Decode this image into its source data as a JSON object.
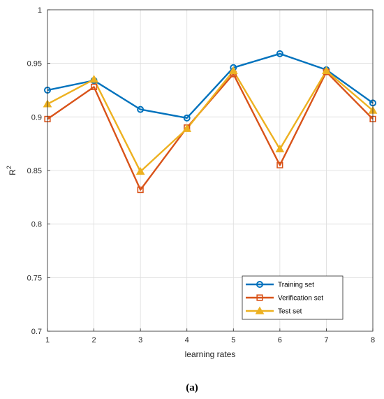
{
  "chart_data": {
    "type": "line",
    "x": [
      1,
      2,
      3,
      4,
      5,
      6,
      7,
      8
    ],
    "xlabel": "learning rates",
    "ylabel": "R",
    "ylabel_superscript": "2",
    "xlim": [
      1,
      8
    ],
    "ylim": [
      0.7,
      1
    ],
    "xticks": [
      "1",
      "2",
      "3",
      "4",
      "5",
      "6",
      "7",
      "8"
    ],
    "yticks": [
      "0.7",
      "0.75",
      "0.8",
      "0.85",
      "0.9",
      "0.95",
      "1"
    ],
    "ytick_values": [
      0.7,
      0.75,
      0.8,
      0.85,
      0.9,
      0.95,
      1
    ],
    "grid": true,
    "legend_position": "bottom-right",
    "series": [
      {
        "name": "Training set",
        "marker": "circle",
        "color": "#0072BD",
        "values": [
          0.925,
          0.934,
          0.907,
          0.899,
          0.946,
          0.959,
          0.944,
          0.913
        ]
      },
      {
        "name": "Verification set",
        "marker": "square",
        "color": "#D95319",
        "values": [
          0.898,
          0.928,
          0.832,
          0.89,
          0.94,
          0.855,
          0.942,
          0.898
        ]
      },
      {
        "name": "Test set",
        "marker": "triangle",
        "color": "#EDB120",
        "values": [
          0.912,
          0.935,
          0.849,
          0.889,
          0.943,
          0.87,
          0.943,
          0.906
        ]
      }
    ]
  },
  "caption": "(a)"
}
